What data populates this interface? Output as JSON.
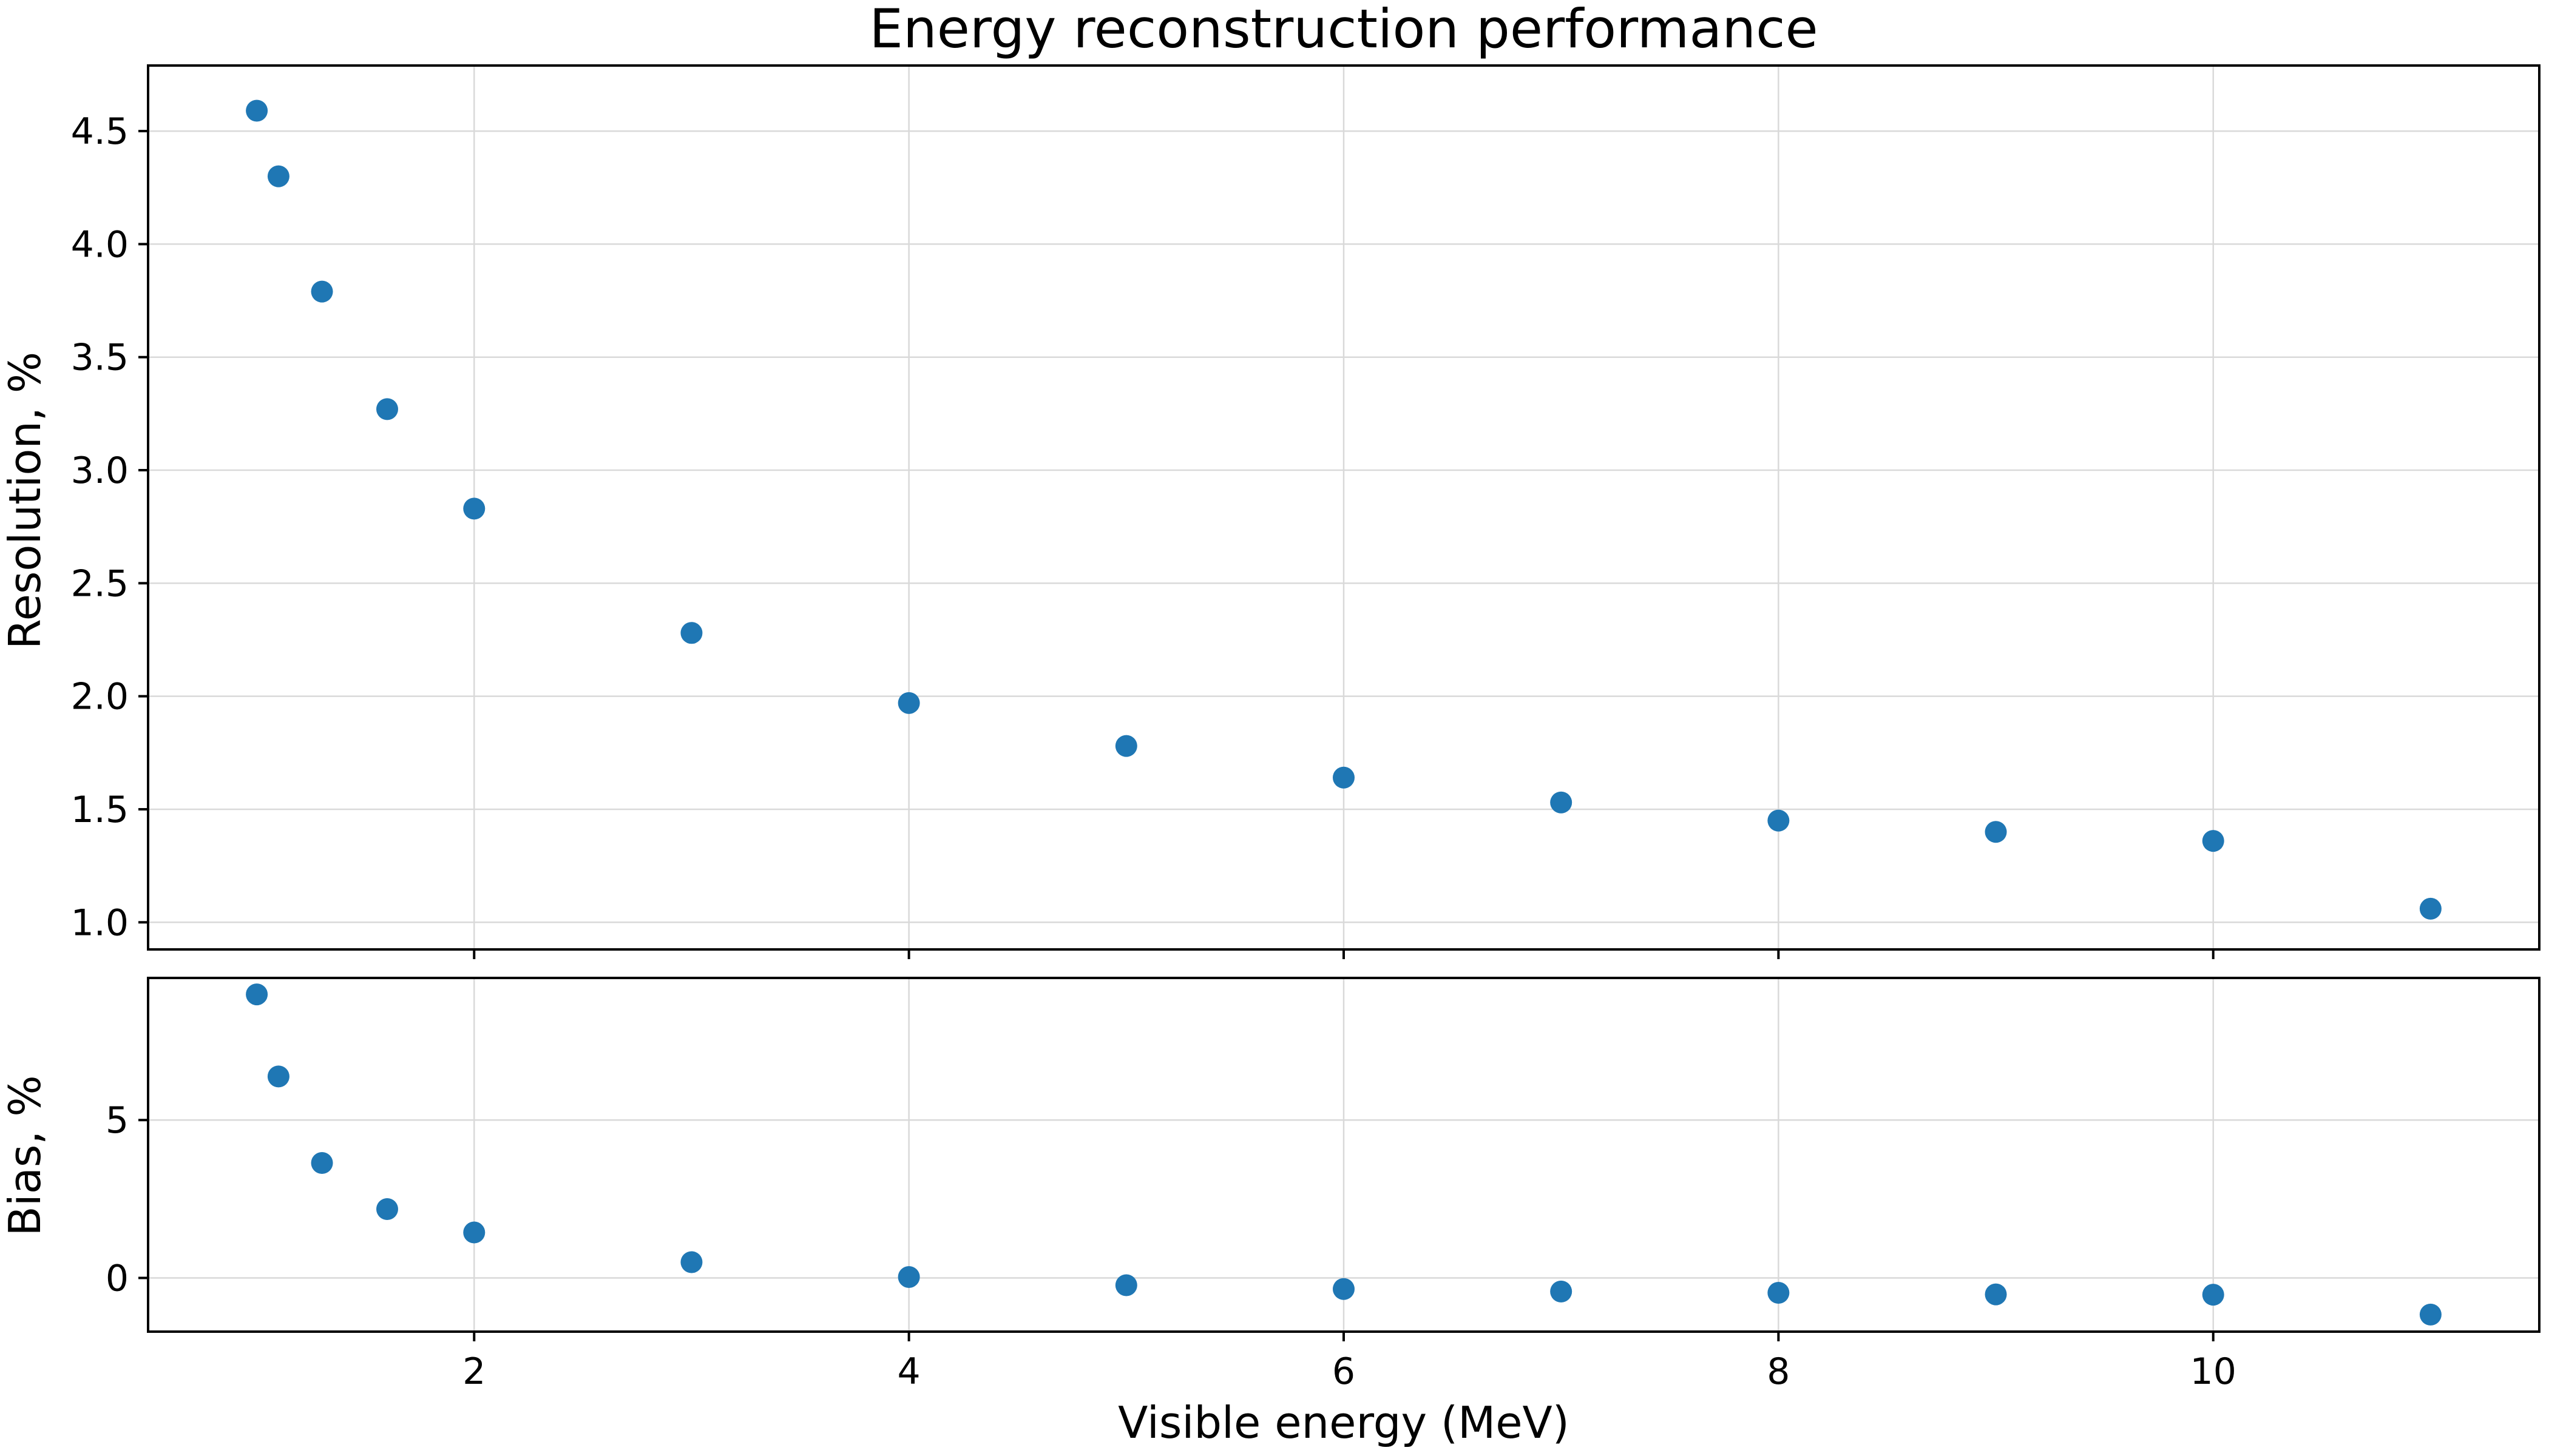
{
  "chart_data": {
    "type": "scatter",
    "title": "Energy reconstruction performance",
    "xlabel": "Visible energy (MeV)",
    "x_ticks": [
      2,
      4,
      6,
      8,
      10
    ],
    "grid": true,
    "marker_color": "#1f77b4",
    "panels": [
      {
        "name": "resolution",
        "ylabel": "Resolution, %",
        "yticks": [
          1.0,
          1.5,
          2.0,
          2.5,
          3.0,
          3.5,
          4.0,
          4.5
        ],
        "ytick_labels": [
          "1.0",
          "1.5",
          "2.0",
          "2.5",
          "3.0",
          "3.5",
          "4.0",
          "4.5"
        ],
        "ylim": [
          0.88,
          4.79
        ],
        "x": [
          1.0,
          1.1,
          1.3,
          1.6,
          2.0,
          3.0,
          4.0,
          5.0,
          6.0,
          7.0,
          8.0,
          9.0,
          10.0,
          11.0
        ],
        "y": [
          4.59,
          4.3,
          3.79,
          3.27,
          2.83,
          2.28,
          1.97,
          1.78,
          1.64,
          1.53,
          1.45,
          1.4,
          1.36,
          1.06
        ]
      },
      {
        "name": "bias",
        "ylabel": "Bias, %",
        "yticks": [
          0,
          5
        ],
        "ytick_labels": [
          "0",
          "5"
        ],
        "ylim": [
          -1.7,
          9.5
        ],
        "x": [
          1.0,
          1.1,
          1.3,
          1.6,
          2.0,
          3.0,
          4.0,
          5.0,
          6.0,
          7.0,
          8.0,
          9.0,
          10.0,
          11.0
        ],
        "y": [
          8.98,
          6.38,
          3.64,
          2.18,
          1.44,
          0.5,
          0.03,
          -0.23,
          -0.35,
          -0.43,
          -0.47,
          -0.52,
          -0.53,
          -1.16
        ]
      }
    ],
    "xlim": [
      0.5,
      11.5
    ]
  }
}
